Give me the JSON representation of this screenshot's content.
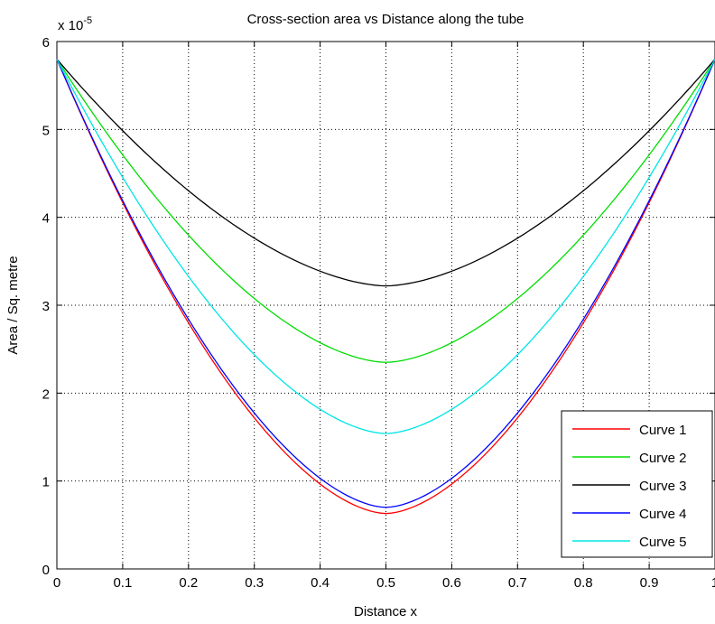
{
  "chart_data": {
    "type": "line",
    "title": "Cross-section area vs Distance along the tube",
    "xlabel": "Distance x",
    "ylabel": "Area / Sq. metre",
    "exponent_label": "x 10",
    "exponent_power": "-5",
    "xlim": [
      0,
      1
    ],
    "ylim": [
      0,
      6
    ],
    "xticks": [
      "0",
      "0.1",
      "0.2",
      "0.3",
      "0.4",
      "0.5",
      "0.6",
      "0.7",
      "0.8",
      "0.9",
      "1"
    ],
    "yticks": [
      "0",
      "1",
      "2",
      "3",
      "4",
      "5",
      "6"
    ],
    "grid": true,
    "legend_position": "bottom-right",
    "series": [
      {
        "name": "Curve 1",
        "color": "#ff0000",
        "min_value": 0.63,
        "end_value": 5.8
      },
      {
        "name": "Curve 2",
        "color": "#00dd00",
        "min_value": 2.35,
        "end_value": 5.8
      },
      {
        "name": "Curve 3",
        "color": "#000000",
        "min_value": 3.22,
        "end_value": 5.8
      },
      {
        "name": "Curve 4",
        "color": "#0000ff",
        "min_value": 0.7,
        "end_value": 5.8
      },
      {
        "name": "Curve 5",
        "color": "#00e5e5",
        "min_value": 1.54,
        "end_value": 5.8
      }
    ]
  }
}
